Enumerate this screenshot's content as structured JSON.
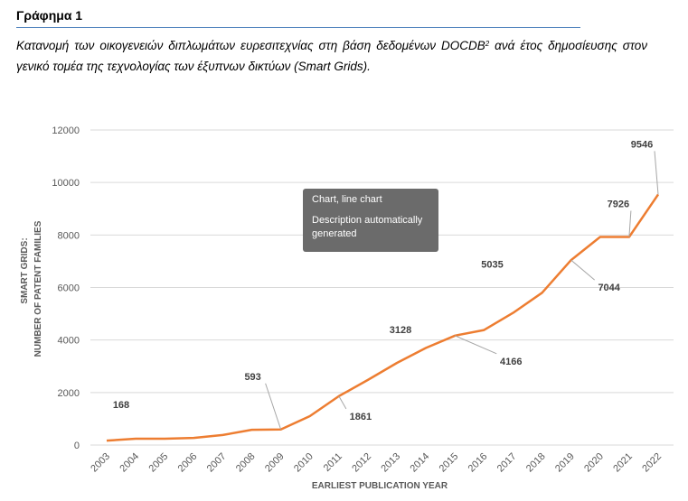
{
  "heading": "Γράφημα 1",
  "caption": {
    "text_before_sup": "Κατανομή των οικογενειών διπλωμάτων ευρεσιτεχνίας στη βάση δεδομένων DOCDB",
    "sup": "2",
    "text_after_sup": " ανά έτος δημοσίευσης στον γενικό τομέα της τεχνολογίας των έξυπνων δικτύων (Smart Grids)."
  },
  "tooltip": {
    "title": "Chart, line chart",
    "description": "Description automatically generated"
  },
  "colors": {
    "line": "#ed7d31",
    "grid": "#d9d9d9",
    "axis_text": "#595959",
    "callout": "#a6a6a6"
  },
  "chart_data": {
    "type": "line",
    "categories": [
      "2003",
      "2004",
      "2005",
      "2006",
      "2007",
      "2008",
      "2009",
      "2010",
      "2011",
      "2012",
      "2013",
      "2014",
      "2015",
      "2016",
      "2017",
      "2018",
      "2019",
      "2020",
      "2021",
      "2022"
    ],
    "series": [
      {
        "values": [
          168,
          240,
          240,
          270,
          380,
          580,
          593,
          1100,
          1861,
          2480,
          3128,
          3700,
          4166,
          4380,
          5035,
          5800,
          7044,
          7926,
          7926,
          9546
        ]
      }
    ],
    "ylim": [
      0,
      12000
    ],
    "yticks": [
      "0",
      "2000",
      "4000",
      "6000",
      "8000",
      "10000",
      "12000"
    ],
    "ylabel_line1": "SMART GRIDS:",
    "ylabel_line2": "NUMBER OF PATENT FAMILIES",
    "xlabel": "EARLIEST PUBLICATION YEAR",
    "grid": true,
    "labels": [
      {
        "index": 0,
        "text": "168"
      },
      {
        "index": 6,
        "text": "593"
      },
      {
        "index": 8,
        "text": "1861"
      },
      {
        "index": 10,
        "text": "3128"
      },
      {
        "index": 12,
        "text": "4166"
      },
      {
        "index": 14,
        "text": "5035"
      },
      {
        "index": 16,
        "text": "7044"
      },
      {
        "index": 18,
        "text": "7926"
      },
      {
        "index": 19,
        "text": "9546"
      }
    ]
  }
}
